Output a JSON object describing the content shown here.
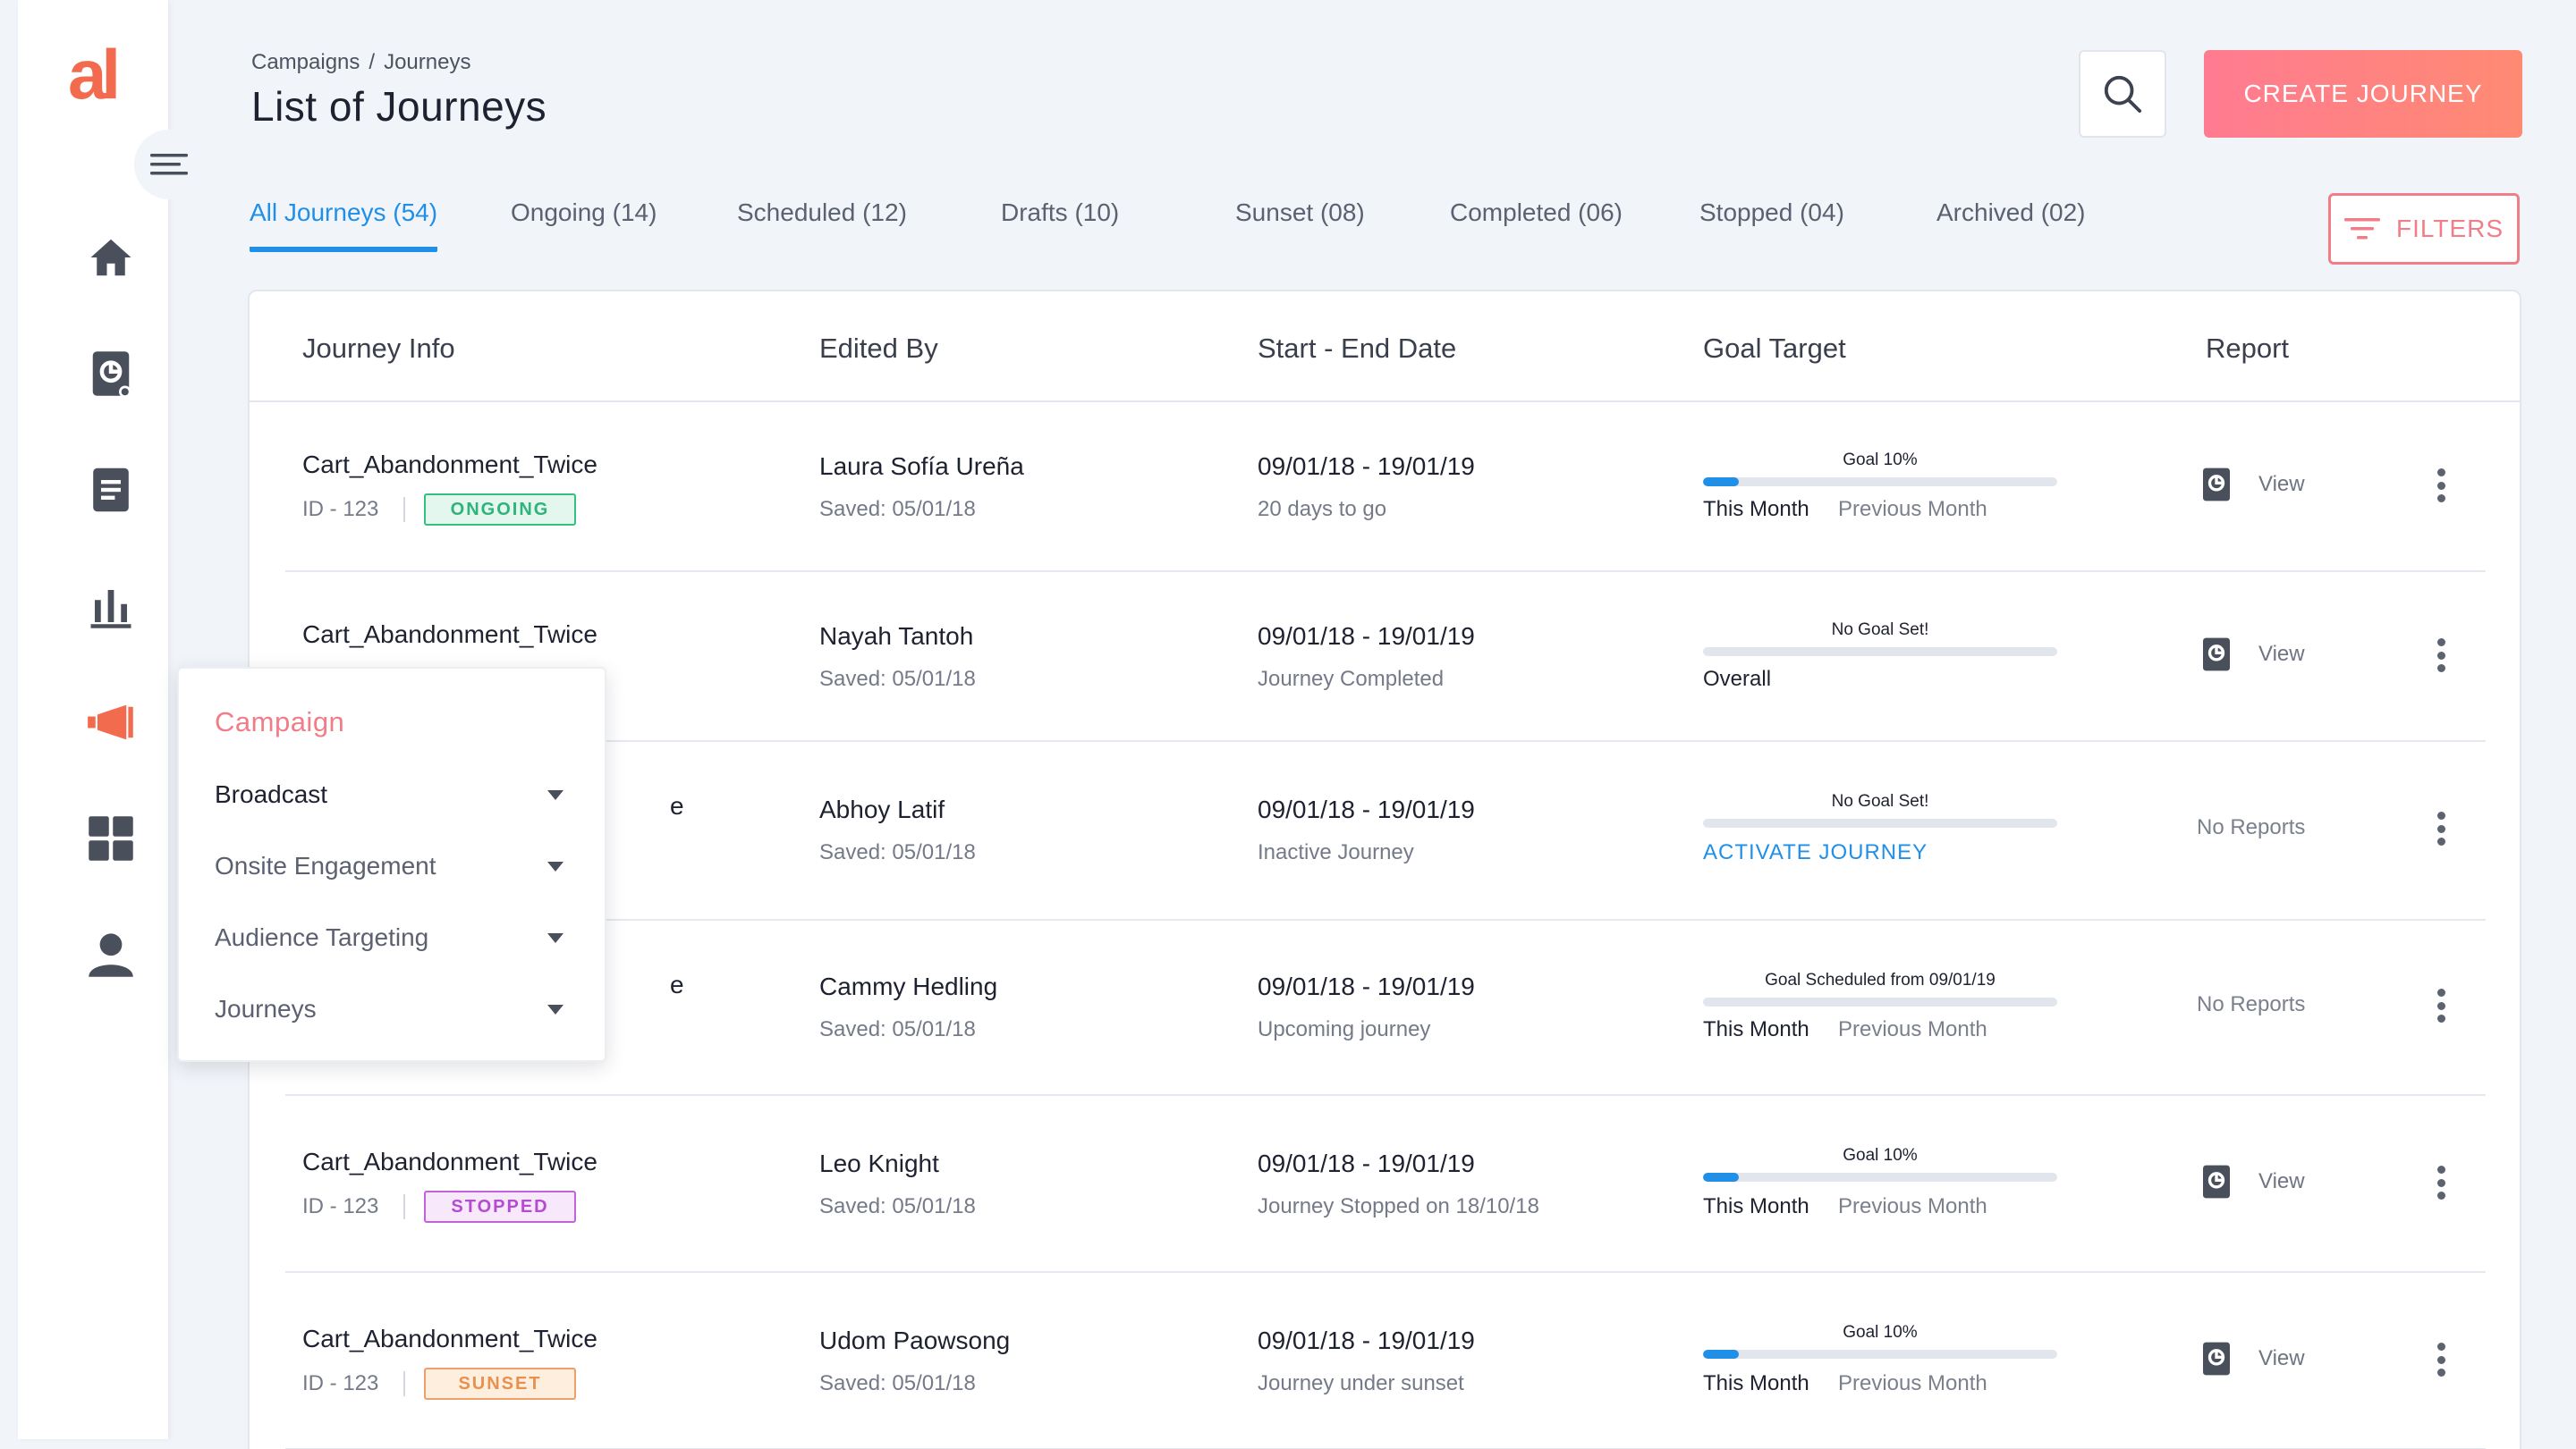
{
  "app": {
    "logo_text": "al"
  },
  "sidebar": {
    "items": [
      {
        "name": "home",
        "icon": "home-icon"
      },
      {
        "name": "reports",
        "icon": "report-document-icon"
      },
      {
        "name": "documents",
        "icon": "document-list-icon"
      },
      {
        "name": "analytics",
        "icon": "bar-chart-icon"
      },
      {
        "name": "campaign",
        "icon": "megaphone-icon",
        "active": true
      },
      {
        "name": "apps",
        "icon": "grid-icon"
      },
      {
        "name": "profile",
        "icon": "user-icon"
      }
    ]
  },
  "header": {
    "breadcrumb": [
      "Campaigns",
      "Journeys"
    ],
    "breadcrumb_separator": "/",
    "title": "List of Journeys",
    "create_label": "CREATE JOURNEY"
  },
  "tabs": [
    {
      "label": "All Journeys (54)",
      "active": true
    },
    {
      "label": "Ongoing (14)"
    },
    {
      "label": "Scheduled (12)"
    },
    {
      "label": "Drafts (10)"
    },
    {
      "label": "Sunset (08)"
    },
    {
      "label": "Completed (06)"
    },
    {
      "label": "Stopped (04)"
    },
    {
      "label": "Archived (02)"
    }
  ],
  "filters_label": "FILTERS",
  "table": {
    "columns": [
      "Journey Info",
      "Edited By",
      "Start - End Date",
      "Goal Target",
      "Report"
    ],
    "rows": [
      {
        "journey": "Cart_Abandonment_Twice",
        "id": "ID - 123",
        "status": "ONGOING",
        "editor": "Laura Sofía Ureña",
        "saved": "Saved: 05/01/18",
        "dates": "09/01/18 - 19/01/19",
        "date_note": "20 days to go",
        "goal_label": "Goal 10%",
        "goal_progress": 0.1,
        "goal_tabs": [
          "This Month",
          "Previous Month"
        ],
        "report": "View"
      },
      {
        "journey": "Cart_Abandonment_Twice",
        "editor": "Nayah Tantoh",
        "saved": "Saved: 05/01/18",
        "dates": "09/01/18 - 19/01/19",
        "date_note": "Journey Completed",
        "goal_label": "No Goal Set!",
        "goal_progress": 0,
        "goal_tabs": [
          "Overall"
        ],
        "report": "View"
      },
      {
        "journey_partial": "e",
        "editor": "Abhoy Latif",
        "saved": "Saved: 05/01/18",
        "dates": "09/01/18 - 19/01/19",
        "date_note": "Inactive Journey",
        "goal_label": "No Goal Set!",
        "goal_progress": 0,
        "goal_action": "ACTIVATE JOURNEY",
        "report": "No Reports"
      },
      {
        "journey_partial": "e",
        "editor": "Cammy Hedling",
        "saved": "Saved: 05/01/18",
        "dates": "09/01/18 - 19/01/19",
        "date_note": "Upcoming journey",
        "goal_label": "Goal Scheduled from 09/01/19",
        "goal_progress": 0,
        "goal_tabs": [
          "This Month",
          "Previous Month"
        ],
        "report": "No Reports"
      },
      {
        "journey": "Cart_Abandonment_Twice",
        "id": "ID - 123",
        "status": "STOPPED",
        "editor": "Leo Knight",
        "saved": "Saved: 05/01/18",
        "dates": "09/01/18 - 19/01/19",
        "date_note": "Journey Stopped on 18/10/18",
        "goal_label": "Goal 10%",
        "goal_progress": 0.1,
        "goal_tabs": [
          "This Month",
          "Previous Month"
        ],
        "report": "View"
      },
      {
        "journey": "Cart_Abandonment_Twice",
        "id": "ID - 123",
        "status": "SUNSET",
        "editor": "Udom Paowsong",
        "saved": "Saved: 05/01/18",
        "dates": "09/01/18 - 19/01/19",
        "date_note": "Journey under sunset",
        "goal_label": "Goal 10%",
        "goal_progress": 0.1,
        "goal_tabs": [
          "This Month",
          "Previous Month"
        ],
        "report": "View"
      }
    ]
  },
  "status_colors": {
    "ONGOING": {
      "fg": "#2fb37a",
      "bg": "#e3f7ee",
      "border": "#34c07f"
    },
    "STOPPED": {
      "fg": "#b44bd0",
      "bg": "#f7e9fb",
      "border": "#c461dc"
    },
    "SUNSET": {
      "fg": "#e8914e",
      "bg": "#fdeede",
      "border": "#eda06a"
    }
  },
  "popover": {
    "title": "Campaign",
    "items": [
      "Broadcast",
      "Onsite Engagement",
      "Audience Targeting",
      "Journeys"
    ]
  },
  "colors": {
    "accent": "#1f8fe8",
    "brand": "#f26b4f",
    "cta": "#ff8080"
  }
}
